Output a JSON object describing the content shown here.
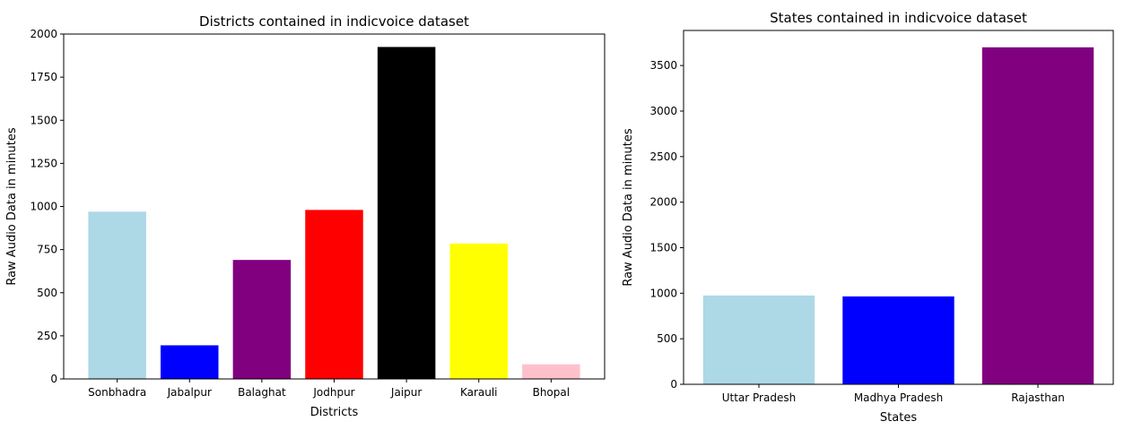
{
  "chart_data": [
    {
      "type": "bar",
      "title": "Districts contained in indicvoice dataset",
      "xlabel": "Districts",
      "ylabel": "Raw Audio Data in minutes",
      "categories": [
        "Sonbhadra",
        "Jabalpur",
        "Balaghat",
        "Jodhpur",
        "Jaipur",
        "Karauli",
        "Bhopal"
      ],
      "values": [
        970,
        195,
        690,
        980,
        1925,
        785,
        85
      ],
      "colors": [
        "#add8e6",
        "#0000ff",
        "#800080",
        "#ff0000",
        "#000000",
        "#ffff00",
        "#ffc0cb"
      ],
      "ylim": [
        0,
        2000
      ],
      "yticks": [
        0,
        250,
        500,
        750,
        1000,
        1250,
        1500,
        1750,
        2000
      ],
      "grid": false,
      "legend": "none"
    },
    {
      "type": "bar",
      "title": "States contained in indicvoice dataset",
      "xlabel": "States",
      "ylabel": "Raw Audio Data in minutes",
      "categories": [
        "Uttar Pradesh",
        "Madhya Pradesh",
        "Rajasthan"
      ],
      "values": [
        975,
        965,
        3700
      ],
      "colors": [
        "#add8e6",
        "#0000ff",
        "#800080"
      ],
      "ylim": [
        0,
        3885
      ],
      "yticks": [
        0,
        500,
        1000,
        1500,
        2000,
        2500,
        3000,
        3500
      ],
      "grid": false,
      "legend": "none"
    }
  ]
}
